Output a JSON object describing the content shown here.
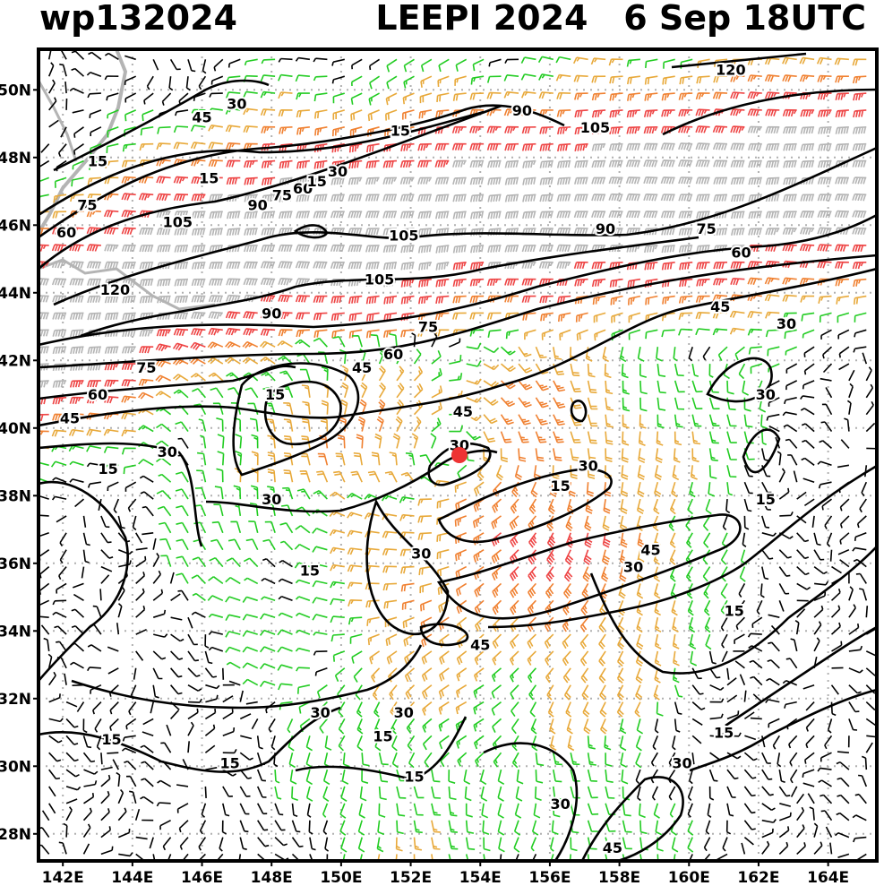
{
  "header": {
    "storm_id": "wp132024",
    "storm_name": "LEEPI",
    "year": "2024",
    "date": "6 Sep",
    "time": "18UTC"
  },
  "map": {
    "lon_range": [
      141.3,
      165.4
    ],
    "lat_range": [
      27.2,
      51.2
    ],
    "lat_ticks": [
      "50N",
      "48N",
      "46N",
      "44N",
      "42N",
      "40N",
      "38N",
      "36N",
      "34N",
      "32N",
      "30N",
      "28N"
    ],
    "lat_values": [
      50,
      48,
      46,
      44,
      42,
      40,
      38,
      36,
      34,
      32,
      30,
      28
    ],
    "lon_ticks": [
      "142E",
      "144E",
      "146E",
      "148E",
      "150E",
      "152E",
      "154E",
      "156E",
      "158E",
      "160E",
      "162E",
      "164E"
    ],
    "lon_values": [
      142,
      144,
      146,
      148,
      150,
      152,
      154,
      156,
      158,
      160,
      162,
      164
    ],
    "grid": true,
    "storm_center": {
      "lon": 153.4,
      "lat": 39.2
    },
    "colors": {
      "calm": "#000000",
      "15kt": "#22cc22",
      "30kt": "#e8a93a",
      "45kt": "#f08030",
      "60kt": "#ee4444",
      "90kt": "#b4b4b4",
      "coast": "#b4b4b4",
      "storm": "#ee3333"
    },
    "contour_labels": [
      {
        "text": "120",
        "lon": 161.2,
        "lat": 50.6
      },
      {
        "text": "105",
        "lon": 157.3,
        "lat": 48.9
      },
      {
        "text": "90",
        "lon": 155.2,
        "lat": 49.4
      },
      {
        "text": "45",
        "lon": 146.0,
        "lat": 49.2
      },
      {
        "text": "30",
        "lon": 147.0,
        "lat": 49.6
      },
      {
        "text": "15",
        "lon": 143.0,
        "lat": 47.9
      },
      {
        "text": "75",
        "lon": 142.7,
        "lat": 46.6
      },
      {
        "text": "60",
        "lon": 142.1,
        "lat": 45.8
      },
      {
        "text": "15",
        "lon": 146.2,
        "lat": 47.4
      },
      {
        "text": "90",
        "lon": 147.6,
        "lat": 46.6
      },
      {
        "text": "75",
        "lon": 148.3,
        "lat": 46.9
      },
      {
        "text": "60",
        "lon": 148.9,
        "lat": 47.1
      },
      {
        "text": "15",
        "lon": 149.3,
        "lat": 47.3
      },
      {
        "text": "30",
        "lon": 149.9,
        "lat": 47.6
      },
      {
        "text": "15",
        "lon": 151.7,
        "lat": 48.8
      },
      {
        "text": "105",
        "lon": 145.3,
        "lat": 46.1
      },
      {
        "text": "120",
        "lon": 143.5,
        "lat": 44.1
      },
      {
        "text": "105",
        "lon": 151.8,
        "lat": 45.7
      },
      {
        "text": "90",
        "lon": 157.6,
        "lat": 45.9
      },
      {
        "text": "75",
        "lon": 160.5,
        "lat": 45.9
      },
      {
        "text": "60",
        "lon": 161.5,
        "lat": 45.2
      },
      {
        "text": "105",
        "lon": 151.1,
        "lat": 44.4
      },
      {
        "text": "90",
        "lon": 148.0,
        "lat": 43.4
      },
      {
        "text": "75",
        "lon": 152.5,
        "lat": 43.0
      },
      {
        "text": "60",
        "lon": 151.5,
        "lat": 42.2
      },
      {
        "text": "45",
        "lon": 160.9,
        "lat": 43.6
      },
      {
        "text": "30",
        "lon": 162.8,
        "lat": 43.1
      },
      {
        "text": "30",
        "lon": 162.2,
        "lat": 41.0
      },
      {
        "text": "75",
        "lon": 144.4,
        "lat": 41.8
      },
      {
        "text": "45",
        "lon": 150.6,
        "lat": 41.8
      },
      {
        "text": "15",
        "lon": 148.1,
        "lat": 41.0
      },
      {
        "text": "60",
        "lon": 143.0,
        "lat": 41.0
      },
      {
        "text": "45",
        "lon": 142.2,
        "lat": 40.3
      },
      {
        "text": "45",
        "lon": 153.5,
        "lat": 40.5
      },
      {
        "text": "30",
        "lon": 145.0,
        "lat": 39.3
      },
      {
        "text": "15",
        "lon": 143.3,
        "lat": 38.8
      },
      {
        "text": "30",
        "lon": 153.4,
        "lat": 39.5
      },
      {
        "text": "30",
        "lon": 157.1,
        "lat": 38.9
      },
      {
        "text": "15",
        "lon": 156.3,
        "lat": 38.3
      },
      {
        "text": "30",
        "lon": 148.0,
        "lat": 37.9
      },
      {
        "text": "15",
        "lon": 162.2,
        "lat": 37.9
      },
      {
        "text": "30",
        "lon": 152.3,
        "lat": 36.3
      },
      {
        "text": "45",
        "lon": 158.9,
        "lat": 36.4
      },
      {
        "text": "30",
        "lon": 158.4,
        "lat": 35.9
      },
      {
        "text": "15",
        "lon": 149.1,
        "lat": 35.8
      },
      {
        "text": "15",
        "lon": 161.3,
        "lat": 34.6
      },
      {
        "text": "45",
        "lon": 154.0,
        "lat": 33.6
      },
      {
        "text": "30",
        "lon": 149.4,
        "lat": 31.6
      },
      {
        "text": "30",
        "lon": 151.8,
        "lat": 31.6
      },
      {
        "text": "15",
        "lon": 151.2,
        "lat": 30.9
      },
      {
        "text": "15",
        "lon": 143.4,
        "lat": 30.8
      },
      {
        "text": "15",
        "lon": 161.0,
        "lat": 31.0
      },
      {
        "text": "15",
        "lon": 146.8,
        "lat": 30.1
      },
      {
        "text": "30",
        "lon": 159.8,
        "lat": 30.1
      },
      {
        "text": "15",
        "lon": 152.1,
        "lat": 29.7
      },
      {
        "text": "30",
        "lon": 156.3,
        "lat": 28.9
      },
      {
        "text": "45",
        "lon": 157.8,
        "lat": 27.6
      }
    ]
  }
}
